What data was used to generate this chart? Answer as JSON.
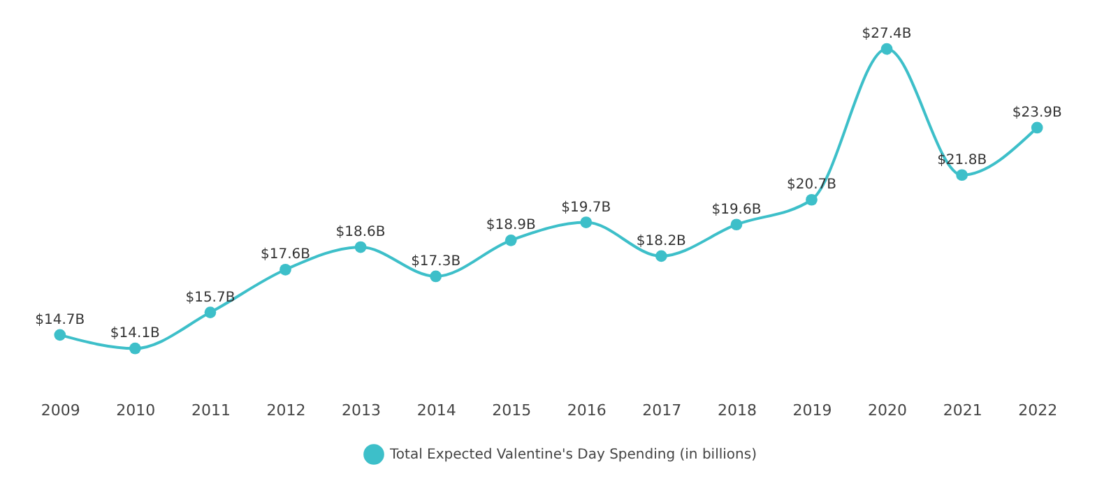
{
  "chart_data": {
    "type": "line",
    "categories": [
      "2009",
      "2010",
      "2011",
      "2012",
      "2013",
      "2014",
      "2015",
      "2016",
      "2017",
      "2018",
      "2019",
      "2020",
      "2021",
      "2022"
    ],
    "series": [
      {
        "name": "Total Expected Valentine's Day Spending (in billions)",
        "color": "#3dbfc9",
        "values": [
          14.7,
          14.1,
          15.7,
          17.6,
          18.6,
          17.3,
          18.9,
          19.7,
          18.2,
          19.6,
          20.7,
          27.4,
          21.8,
          23.9
        ],
        "value_labels": [
          "$14.7B",
          "$14.1B",
          "$15.7B",
          "$17.6B",
          "$18.6B",
          "$17.3B",
          "$18.9B",
          "$19.7B",
          "$18.2B",
          "$19.6B",
          "$20.7B",
          "$27.4B",
          "$21.8B",
          "$23.9B"
        ]
      }
    ],
    "marker": "circle",
    "line_style": "solid",
    "legend": "bottom",
    "tick_labels": "x"
  }
}
